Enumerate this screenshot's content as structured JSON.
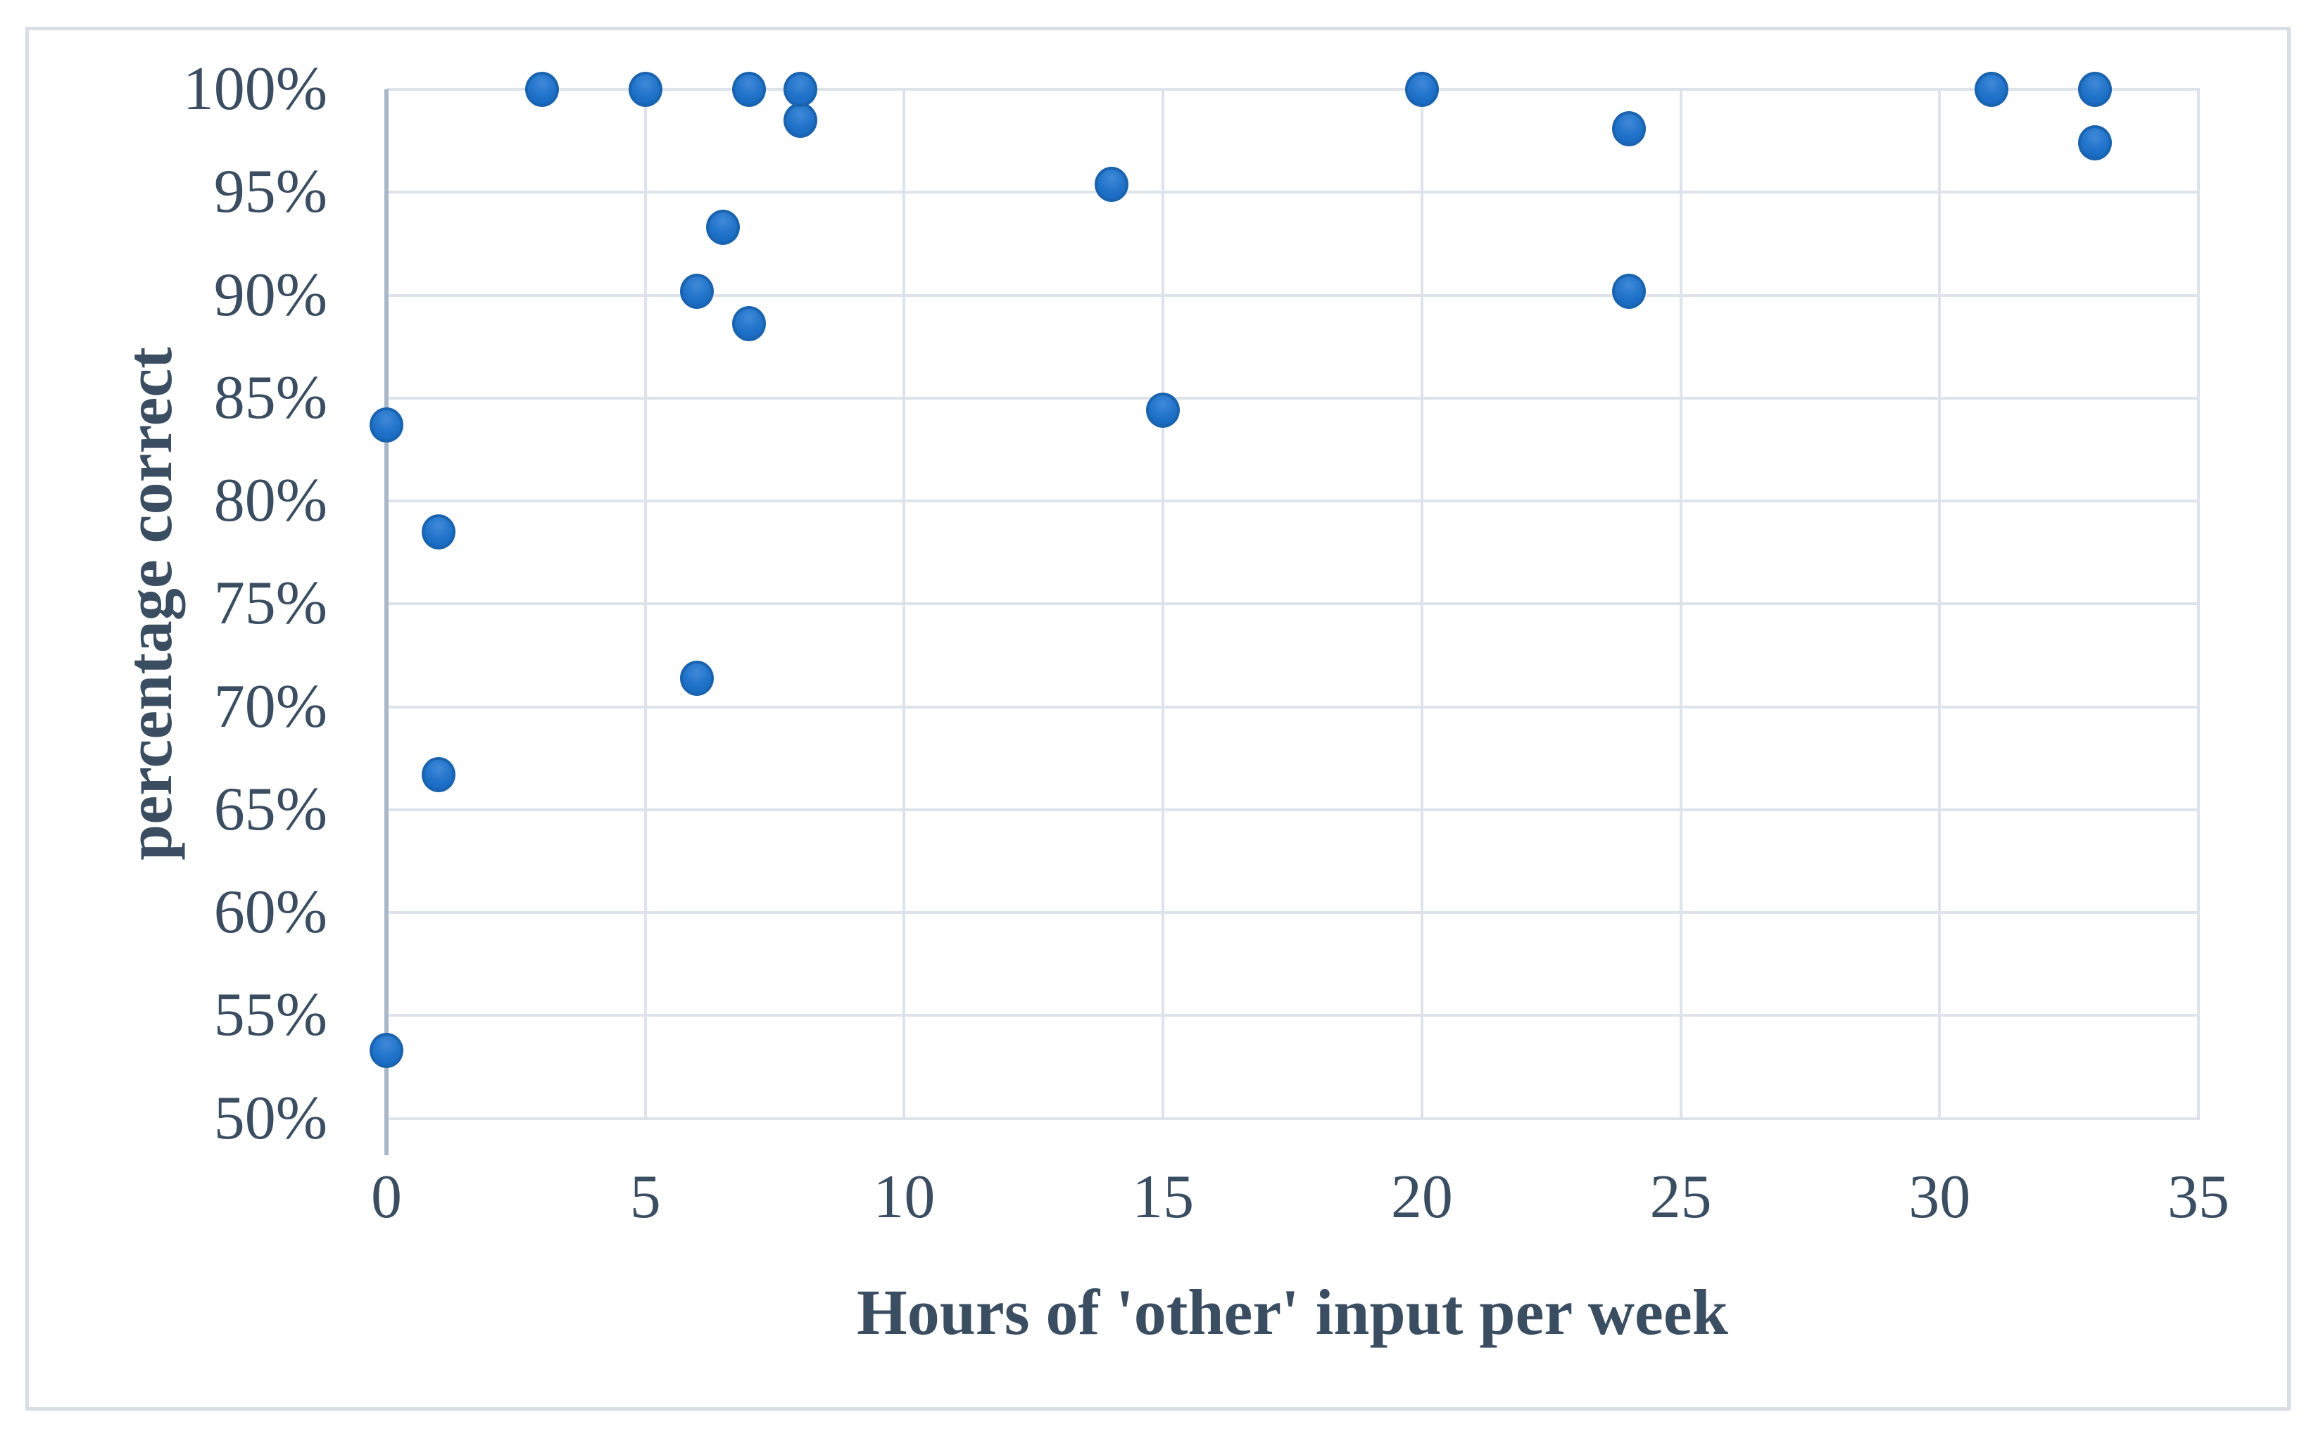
{
  "chart_data": {
    "type": "scatter",
    "title": "",
    "xlabel": "Hours of 'other' input per week",
    "ylabel": "percentage correct",
    "xlim": [
      0,
      35
    ],
    "ylim": [
      50,
      100
    ],
    "grid": true,
    "legend": false,
    "x_ticks": [
      0,
      5,
      10,
      15,
      20,
      25,
      30,
      35
    ],
    "x_tick_labels": [
      "0",
      "5",
      "10",
      "15",
      "20",
      "25",
      "30",
      "35"
    ],
    "y_ticks": [
      50,
      55,
      60,
      65,
      70,
      75,
      80,
      85,
      90,
      95,
      100
    ],
    "y_tick_labels": [
      "50%",
      "55%",
      "60%",
      "65%",
      "70%",
      "75%",
      "80%",
      "85%",
      "90%",
      "95%",
      "100%"
    ],
    "points": [
      {
        "x": 0,
        "y": 53.3
      },
      {
        "x": 0,
        "y": 83.7
      },
      {
        "x": 1,
        "y": 66.7
      },
      {
        "x": 1,
        "y": 78.5
      },
      {
        "x": 3,
        "y": 100
      },
      {
        "x": 5,
        "y": 100
      },
      {
        "x": 6,
        "y": 71.4
      },
      {
        "x": 6,
        "y": 90.2
      },
      {
        "x": 6.5,
        "y": 93.3
      },
      {
        "x": 7,
        "y": 88.6
      },
      {
        "x": 7,
        "y": 100
      },
      {
        "x": 8,
        "y": 98.5
      },
      {
        "x": 8,
        "y": 100
      },
      {
        "x": 14,
        "y": 95.4
      },
      {
        "x": 15,
        "y": 84.4
      },
      {
        "x": 20,
        "y": 100
      },
      {
        "x": 24,
        "y": 90.2
      },
      {
        "x": 24,
        "y": 98.1
      },
      {
        "x": 31,
        "y": 100
      },
      {
        "x": 33,
        "y": 97.4
      },
      {
        "x": 33,
        "y": 100
      }
    ]
  },
  "colors": {
    "background": "#FFFFFF",
    "frame_border": "#D9DEE4",
    "gridline": "#DEE3EB",
    "axis_line": "#A9B8C9",
    "text": "#3B4D61",
    "marker_fill_light": "#4189D8",
    "marker_fill": "#2476CC",
    "marker_fill_dark": "#1263BC",
    "marker_border": "#1A63AE"
  }
}
